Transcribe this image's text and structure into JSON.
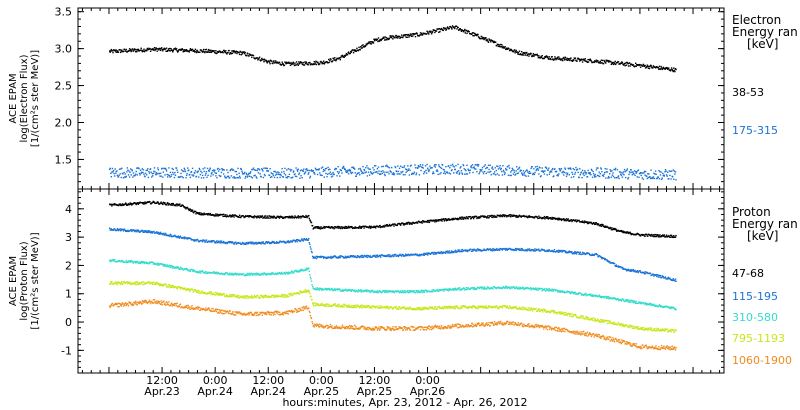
{
  "chart_data": [
    {
      "type": "scatter",
      "ylabel_lines": [
        "ACE EPAM",
        "log(Electron Flux)",
        "[1/(cm²s ster MeV)]"
      ],
      "ylim": [
        1.1,
        3.55
      ],
      "yticks": [
        1.5,
        2.0,
        2.5,
        3.0,
        3.5
      ],
      "ytick_labels": [
        "1.5",
        "2.0",
        "2.5",
        "3.0",
        "3.5"
      ],
      "legend": {
        "title_lines": [
          "Electron",
          "Energy ran",
          "[keV]"
        ],
        "entries": [
          {
            "label": "38-53",
            "color": "#000000"
          },
          {
            "label": "175-315",
            "color": "#1a73d6"
          }
        ]
      },
      "series": [
        {
          "name": "38-53",
          "color": "#000000",
          "spread": 0.025,
          "x": [
            0,
            10,
            20,
            30,
            36,
            40,
            48,
            52,
            60,
            62,
            70,
            78,
            84,
            92,
            100,
            110,
            120,
            128
          ],
          "values": [
            2.97,
            3.0,
            2.98,
            2.95,
            2.83,
            2.8,
            2.82,
            2.88,
            3.12,
            3.15,
            3.2,
            3.3,
            3.16,
            2.96,
            2.88,
            2.84,
            2.78,
            2.72
          ]
        },
        {
          "name": "175-315",
          "color": "#1a73d6",
          "spread": 0.07,
          "x": [
            0,
            20,
            40,
            60,
            80,
            100,
            128
          ],
          "values": [
            1.33,
            1.33,
            1.32,
            1.36,
            1.38,
            1.34,
            1.3
          ]
        }
      ]
    },
    {
      "type": "scatter",
      "ylabel_lines": [
        "ACE EPAM",
        "log(Proton Flux)",
        "[1/(cm²s ster MeV)]"
      ],
      "ylim": [
        -1.8,
        4.7
      ],
      "yticks": [
        -1,
        0,
        1,
        2,
        3,
        4
      ],
      "ytick_labels": [
        "-1",
        "0",
        "1",
        "2",
        "3",
        "4"
      ],
      "legend": {
        "title_lines": [
          "Proton",
          "Energy ran",
          "[keV]"
        ],
        "entries": [
          {
            "label": "47-68",
            "color": "#000000"
          },
          {
            "label": "115-195",
            "color": "#1a73d6"
          },
          {
            "label": "310-580",
            "color": "#33dccc"
          },
          {
            "label": "795-1193",
            "color": "#c8e619"
          },
          {
            "label": "1060-1900",
            "color": "#f08c1e"
          }
        ]
      },
      "series": [
        {
          "name": "47-68",
          "color": "#000000",
          "spread": 0.04,
          "x": [
            0,
            10,
            16,
            20,
            30,
            40,
            45,
            46,
            60,
            70,
            80,
            90,
            100,
            110,
            116,
            120,
            128
          ],
          "values": [
            4.15,
            4.25,
            4.15,
            3.85,
            3.75,
            3.72,
            3.75,
            3.35,
            3.38,
            3.55,
            3.7,
            3.78,
            3.7,
            3.5,
            3.2,
            3.1,
            3.05
          ]
        },
        {
          "name": "115-195",
          "color": "#1a73d6",
          "spread": 0.04,
          "x": [
            0,
            10,
            20,
            30,
            40,
            45,
            46,
            60,
            70,
            80,
            90,
            100,
            110,
            116,
            120,
            128
          ],
          "values": [
            3.3,
            3.2,
            2.9,
            2.8,
            2.85,
            2.95,
            2.3,
            2.35,
            2.4,
            2.55,
            2.6,
            2.55,
            2.4,
            1.9,
            1.8,
            1.5
          ]
        },
        {
          "name": "310-580",
          "color": "#33dccc",
          "spread": 0.04,
          "x": [
            0,
            10,
            20,
            30,
            40,
            45,
            46,
            60,
            70,
            80,
            90,
            100,
            110,
            120,
            128
          ],
          "values": [
            2.2,
            2.1,
            1.8,
            1.7,
            1.75,
            1.9,
            1.2,
            1.1,
            1.1,
            1.2,
            1.25,
            1.15,
            0.95,
            0.7,
            0.5
          ]
        },
        {
          "name": "795-1193",
          "color": "#c8e619",
          "spread": 0.05,
          "x": [
            0,
            10,
            20,
            30,
            40,
            45,
            46,
            60,
            70,
            80,
            90,
            100,
            110,
            120,
            128
          ],
          "values": [
            1.4,
            1.4,
            1.1,
            0.9,
            0.95,
            1.15,
            0.65,
            0.55,
            0.5,
            0.55,
            0.55,
            0.4,
            0.1,
            -0.2,
            -0.3
          ]
        },
        {
          "name": "1060-1900",
          "color": "#f08c1e",
          "spread": 0.07,
          "x": [
            0,
            10,
            20,
            30,
            40,
            45,
            46,
            60,
            70,
            80,
            90,
            100,
            110,
            120,
            128
          ],
          "values": [
            0.6,
            0.75,
            0.5,
            0.3,
            0.35,
            0.55,
            -0.1,
            -0.2,
            -0.2,
            -0.1,
            0.0,
            -0.2,
            -0.45,
            -0.85,
            -0.9
          ]
        }
      ]
    }
  ],
  "x_axis": {
    "range_hours": [
      -7,
      139
    ],
    "ticks": [
      {
        "hour": 12,
        "time": "12:00",
        "date": "Apr.23"
      },
      {
        "hour": 24,
        "time": "0:00",
        "date": "Apr.24"
      },
      {
        "hour": 36,
        "time": "12:00",
        "date": "Apr.24"
      },
      {
        "hour": 48,
        "time": "0:00",
        "date": "Apr.25"
      },
      {
        "hour": 60,
        "time": "12:00",
        "date": "Apr.25"
      },
      {
        "hour": 72,
        "time": "0:00",
        "date": "Apr.26"
      }
    ],
    "label": "hours:minutes, Apr. 23, 2012 - Apr. 26, 2012"
  }
}
